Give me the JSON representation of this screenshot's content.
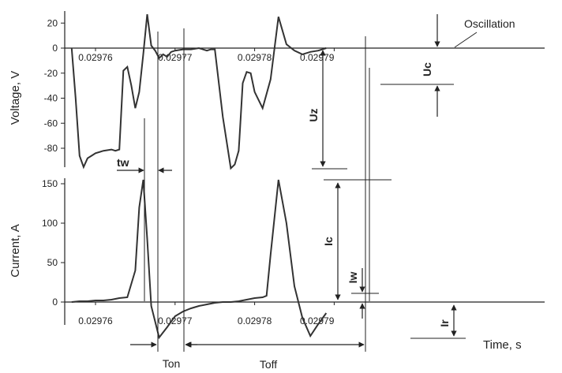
{
  "chart_data": [
    {
      "type": "line",
      "ylabel": "Voltage, V",
      "y_ticks": [
        20,
        0,
        -20,
        -40,
        -60,
        -80
      ],
      "x_ticks": [
        "0.02976",
        "0.02977",
        "0.02978",
        "0.02979"
      ],
      "ylim": [
        -100,
        27
      ],
      "xlim": [
        0.029757,
        0.02979
      ],
      "annotations": [
        "tw",
        "Uz",
        "Uc",
        "Oscillation"
      ],
      "series": [
        {
          "x": [
            0.029757,
            0.0297575,
            0.029758,
            0.0297585,
            0.029759,
            0.0297595,
            0.02976,
            0.029761,
            0.029762,
            0.0297625,
            0.029763,
            0.0297635,
            0.029764,
            0.0297645,
            0.029765,
            0.0297655,
            0.029766,
            0.0297665,
            0.029767,
            0.0297675,
            0.029768,
            0.0297685,
            0.029769,
            0.0297695,
            0.02977,
            0.029771,
            0.029772,
            0.029773,
            0.029774,
            0.0297745,
            0.029775,
            0.029776,
            0.029777,
            0.0297775,
            0.029778,
            0.0297781,
            0.0297785,
            0.029779,
            0.0297795,
            0.02978,
            0.029781,
            0.029782,
            0.029783,
            0.029784,
            0.029785,
            0.029786,
            0.029787,
            0.029788,
            0.029789
          ],
          "y": [
            0,
            -40,
            -86,
            -95,
            -88,
            -86,
            -84,
            -82,
            -81,
            -82,
            -81,
            -18,
            -15,
            -30,
            -48,
            -35,
            -5,
            27,
            2,
            -2,
            -8,
            -5,
            -7,
            -3,
            -2,
            -1,
            -1,
            0,
            -2,
            -1,
            -1,
            -55,
            -96,
            -93,
            -82,
            -72,
            -28,
            -19,
            -20,
            -35,
            -48,
            -25,
            25,
            3,
            -2,
            -5,
            -3,
            -2,
            0
          ]
        }
      ]
    },
    {
      "type": "line",
      "ylabel": "Current, A",
      "xlabel": "Time, s",
      "y_ticks": [
        150,
        100,
        50,
        0
      ],
      "x_ticks": [
        "0.02976",
        "0.02977",
        "0.02978",
        "0.02979"
      ],
      "ylim": [
        -50,
        160
      ],
      "xlim": [
        0.029757,
        0.02979
      ],
      "annotations": [
        "Ic",
        "Iw",
        "Ir",
        "Ton",
        "Toff"
      ],
      "series": [
        {
          "x": [
            0.029757,
            0.029758,
            0.029759,
            0.02976,
            0.029761,
            0.029762,
            0.0297625,
            0.029763,
            0.029764,
            0.029765,
            0.0297655,
            0.029766,
            0.0297665,
            0.029767,
            0.029768,
            0.029769,
            0.02977,
            0.029771,
            0.029772,
            0.029773,
            0.029774,
            0.0297745,
            0.029775,
            0.029776,
            0.029777,
            0.029778,
            0.029779,
            0.02978,
            0.029781,
            0.0297815,
            0.029782,
            0.029783,
            0.029784,
            0.029785,
            0.029786,
            0.029787,
            0.029788,
            0.029789
          ],
          "y": [
            0,
            1,
            1,
            2,
            2,
            3,
            4,
            5,
            6,
            40,
            120,
            155,
            80,
            -5,
            -45,
            -32,
            -18,
            -12,
            -8,
            -5,
            -3,
            -2,
            -1,
            0,
            0,
            1,
            3,
            5,
            6,
            8,
            60,
            155,
            100,
            20,
            -20,
            -43,
            -28,
            -14
          ]
        }
      ]
    }
  ],
  "labels": {
    "tw": "tw",
    "uz": "Uz",
    "uc": "Uc",
    "oscillation": "Oscillation",
    "ic": "Ic",
    "iw": "Iw",
    "ir": "Ir",
    "ton": "Ton",
    "toff": "Toff",
    "time": "Time, s"
  }
}
